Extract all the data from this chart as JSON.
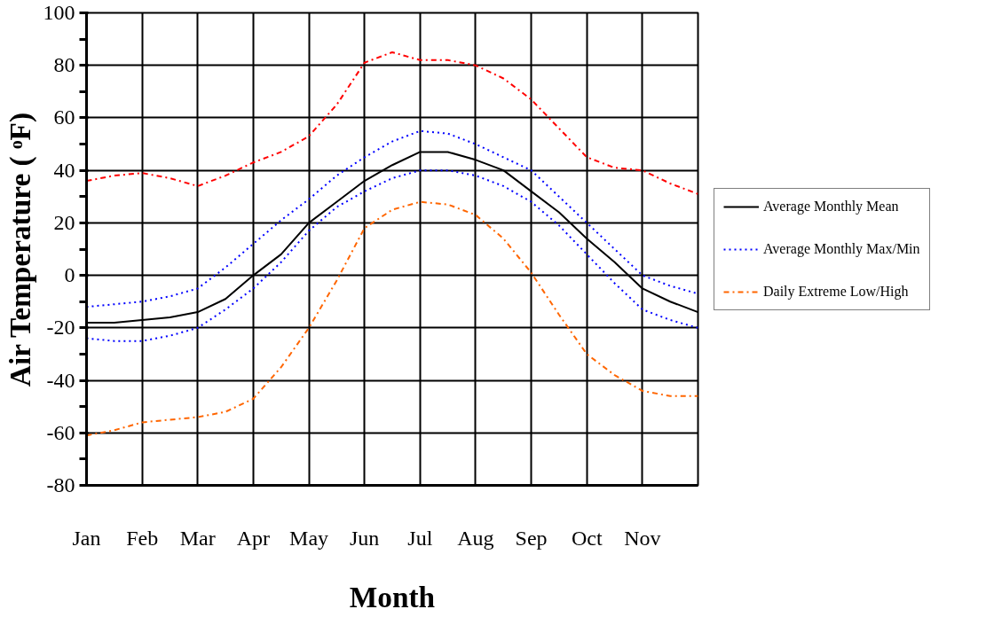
{
  "chart_data": {
    "type": "line",
    "xlabel": "Month",
    "ylabel": "Air Temperature ( ᵒF)",
    "categories": [
      "Jan",
      null,
      "Feb",
      null,
      "Mar",
      null,
      "Apr",
      null,
      "May",
      null,
      "Jun",
      null,
      "Jul",
      null,
      "Aug",
      null,
      "Sep",
      null,
      "Oct",
      null,
      "Nov",
      null,
      null
    ],
    "ylim": [
      -80,
      100
    ],
    "yticks": [
      -80,
      -60,
      -40,
      -20,
      0,
      20,
      40,
      60,
      80,
      100
    ],
    "grid": true,
    "legend": "right",
    "series": [
      {
        "name": "Average Monthly Mean",
        "color": "#000000",
        "line_style": "solid",
        "values": [
          -18,
          -18,
          -17,
          -16,
          -14,
          -9,
          0,
          8,
          20,
          28,
          36,
          42,
          47,
          47,
          44,
          40,
          32,
          24,
          14,
          5,
          -5,
          -10,
          -14
        ]
      },
      {
        "name": "Average Monthly Max/Min",
        "color": "#0000ff",
        "line_style": "dotted",
        "values": [
          -12,
          -11,
          -10,
          -8,
          -5,
          3,
          12,
          21,
          29,
          38,
          45,
          51,
          55,
          54,
          50,
          45,
          40,
          30,
          20,
          10,
          0,
          -4,
          -7
        ]
      },
      {
        "color": "#0000ff",
        "line_style": "dotted",
        "values": [
          -24,
          -25,
          -25,
          -23,
          -20,
          -13,
          -5,
          5,
          17,
          26,
          32,
          37,
          40,
          40,
          38,
          34,
          28,
          19,
          8,
          -3,
          -13,
          -17,
          -20
        ]
      },
      {
        "name": "Daily Extreme Low/High",
        "color": "#ff6600",
        "line_style": "dashed",
        "values": [
          -61,
          -59,
          -56,
          -55,
          -54,
          -52,
          -47,
          -35,
          -20,
          -2,
          18,
          25,
          28,
          27,
          23,
          14,
          1,
          -15,
          -30,
          -38,
          -44,
          -46,
          -46
        ]
      },
      {
        "color": "#ff0000",
        "line_style": "dashed",
        "values": [
          36,
          38,
          39,
          37,
          34,
          38,
          43,
          47,
          53,
          65,
          81,
          85,
          82,
          82,
          80,
          75,
          67,
          56,
          45,
          41,
          40,
          35,
          31
        ]
      }
    ]
  }
}
